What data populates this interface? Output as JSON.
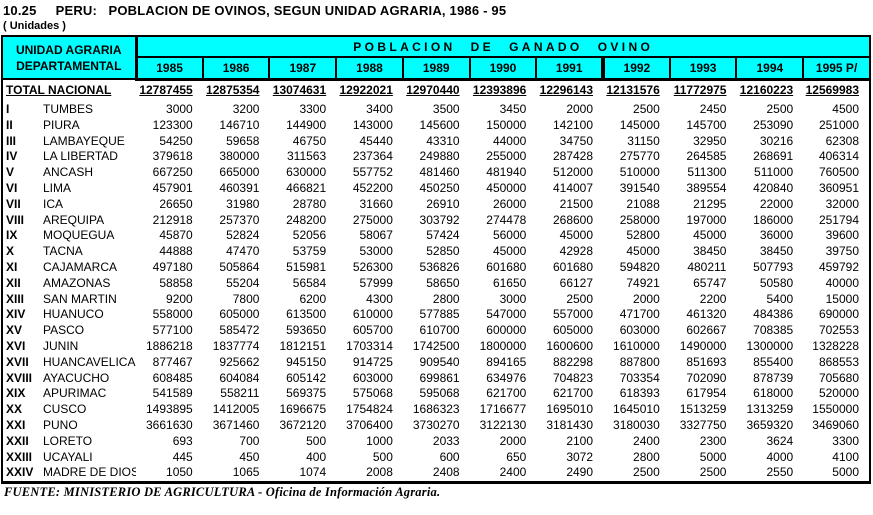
{
  "title": "10.25     PERU:   POBLACION DE OVINOS, SEGUN UNIDAD AGRARIA, 1986 - 95",
  "subtitle": "( Unidades )",
  "colors": {
    "header_bg": "#00ffff",
    "border": "#000000",
    "text": "#000000"
  },
  "table": {
    "corner_line1": "UNIDAD AGRARIA",
    "corner_line2": "DEPARTAMENTAL",
    "group_header": "POBLACION DE GANADO OVINO",
    "years": [
      "1985",
      "1986",
      "1987",
      "1988",
      "1989",
      "1990",
      "1991",
      "1992",
      "1993",
      "1994",
      "1995 P/"
    ],
    "total": {
      "label": "TOTAL NACIONAL",
      "values": [
        12787455,
        12875354,
        13074631,
        12922021,
        12970440,
        12393896,
        12296143,
        12131576,
        11772975,
        12160223,
        12569983
      ]
    },
    "rows": [
      {
        "numeral": "I",
        "name": "TUMBES",
        "values": [
          3000,
          3200,
          3300,
          3400,
          3500,
          3450,
          2000,
          2500,
          2450,
          2500,
          4500
        ]
      },
      {
        "numeral": "II",
        "name": "PIURA",
        "values": [
          123300,
          146710,
          144900,
          143000,
          145600,
          150000,
          142100,
          145000,
          145700,
          253090,
          251000
        ]
      },
      {
        "numeral": "III",
        "name": "LAMBAYEQUE",
        "values": [
          54250,
          59658,
          46750,
          45440,
          43310,
          44000,
          34750,
          31150,
          32950,
          30216,
          62308
        ]
      },
      {
        "numeral": "IV",
        "name": "LA LIBERTAD",
        "values": [
          379618,
          380000,
          311563,
          237364,
          249880,
          255000,
          287428,
          275770,
          264585,
          268691,
          406314
        ]
      },
      {
        "numeral": "V",
        "name": "ANCASH",
        "values": [
          667250,
          665000,
          630000,
          557752,
          481460,
          481940,
          512000,
          510000,
          511300,
          511000,
          760500
        ]
      },
      {
        "numeral": "VI",
        "name": "LIMA",
        "values": [
          457901,
          460391,
          466821,
          452200,
          450250,
          450000,
          414007,
          391540,
          389554,
          420840,
          360951
        ]
      },
      {
        "numeral": "VII",
        "name": "ICA",
        "values": [
          26650,
          31980,
          28780,
          31660,
          26910,
          26000,
          21500,
          21088,
          21295,
          22000,
          32000
        ]
      },
      {
        "numeral": "VIII",
        "name": "AREQUIPA",
        "values": [
          212918,
          257370,
          248200,
          275000,
          303792,
          274478,
          268600,
          258000,
          197000,
          186000,
          251794
        ]
      },
      {
        "numeral": "IX",
        "name": "MOQUEGUA",
        "values": [
          45870,
          52824,
          52056,
          58067,
          57424,
          56000,
          45000,
          52800,
          45000,
          36000,
          39600
        ]
      },
      {
        "numeral": "X",
        "name": "TACNA",
        "values": [
          44888,
          47470,
          53759,
          53000,
          52850,
          45000,
          42928,
          45000,
          38450,
          38450,
          39750
        ]
      },
      {
        "numeral": "XI",
        "name": "CAJAMARCA",
        "values": [
          497180,
          505864,
          515981,
          526300,
          536826,
          601680,
          601680,
          594820,
          480211,
          507793,
          459792
        ]
      },
      {
        "numeral": "XII",
        "name": "AMAZONAS",
        "values": [
          58858,
          55204,
          56584,
          57999,
          58650,
          61650,
          66127,
          74921,
          65747,
          50580,
          40000
        ]
      },
      {
        "numeral": "XIII",
        "name": "SAN MARTIN",
        "values": [
          9200,
          7800,
          6200,
          4300,
          2800,
          3000,
          2500,
          2000,
          2200,
          5400,
          15000
        ]
      },
      {
        "numeral": "XIV",
        "name": "HUANUCO",
        "values": [
          558000,
          605000,
          613500,
          610000,
          577885,
          547000,
          557000,
          471700,
          461320,
          484386,
          690000
        ]
      },
      {
        "numeral": "XV",
        "name": "PASCO",
        "values": [
          577100,
          585472,
          593650,
          605700,
          610700,
          600000,
          605000,
          603000,
          602667,
          708385,
          702553
        ]
      },
      {
        "numeral": "XVI",
        "name": "JUNIN",
        "values": [
          1886218,
          1837774,
          1812151,
          1703314,
          1742500,
          1800000,
          1600600,
          1610000,
          1490000,
          1300000,
          1328228
        ]
      },
      {
        "numeral": "XVII",
        "name": "HUANCAVELICA",
        "values": [
          877467,
          925662,
          945150,
          914725,
          909540,
          894165,
          882298,
          887800,
          851693,
          855400,
          868553
        ]
      },
      {
        "numeral": "XVIII",
        "name": "AYACUCHO",
        "values": [
          608485,
          604084,
          605142,
          603000,
          699861,
          634976,
          704823,
          703354,
          702090,
          878739,
          705680
        ]
      },
      {
        "numeral": "XIX",
        "name": "APURIMAC",
        "values": [
          541589,
          558211,
          569375,
          575068,
          595068,
          621700,
          621700,
          618393,
          617954,
          618000,
          520000
        ]
      },
      {
        "numeral": "XX",
        "name": "CUSCO",
        "values": [
          1493895,
          1412005,
          1696675,
          1754824,
          1686323,
          1716677,
          1695010,
          1645010,
          1513259,
          1313259,
          1550000
        ]
      },
      {
        "numeral": "XXI",
        "name": "PUNO",
        "values": [
          3661630,
          3671460,
          3672120,
          3706400,
          3730270,
          3122130,
          3181430,
          3180030,
          3327750,
          3659320,
          3469060
        ]
      },
      {
        "numeral": "XXII",
        "name": "LORETO",
        "values": [
          693,
          700,
          500,
          1000,
          2033,
          2000,
          2100,
          2400,
          2300,
          3624,
          3300
        ]
      },
      {
        "numeral": "XXIII",
        "name": "UCAYALI",
        "values": [
          445,
          450,
          400,
          500,
          600,
          650,
          3072,
          2800,
          5000,
          4000,
          4100
        ]
      },
      {
        "numeral": "XXIV",
        "name": "MADRE DE DIOS",
        "values": [
          1050,
          1065,
          1074,
          2008,
          2408,
          2400,
          2490,
          2500,
          2500,
          2550,
          5000
        ]
      }
    ]
  },
  "footer": "FUENTE: MINISTERIO DE AGRICULTURA - Oficina de Información Agraria."
}
